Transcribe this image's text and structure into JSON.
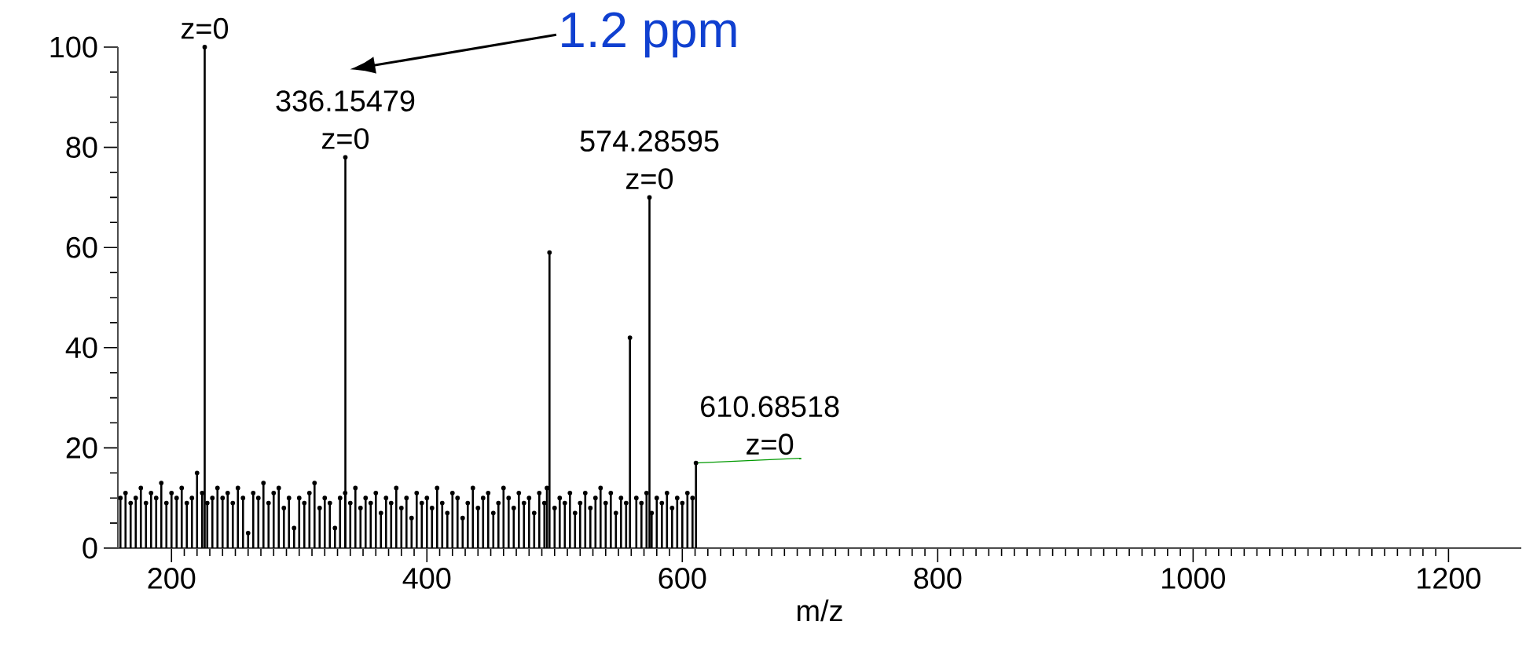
{
  "chart_data": {
    "type": "lollipop",
    "xlabel": "m/z",
    "color": "#000000",
    "x": [
      160,
      164,
      168,
      172,
      176,
      180,
      184,
      188,
      192,
      196,
      200,
      204,
      208,
      212,
      216,
      220,
      224,
      226,
      228,
      232,
      236,
      240,
      244,
      248,
      252,
      256,
      260,
      264,
      268,
      272,
      276,
      280,
      284,
      288,
      292,
      296,
      300,
      304,
      308,
      312,
      316,
      320,
      324,
      328,
      332,
      336,
      336.15479,
      340,
      344,
      348,
      352,
      356,
      360,
      364,
      368,
      372,
      376,
      380,
      384,
      388,
      392,
      396,
      400,
      404,
      408,
      412,
      416,
      420,
      424,
      428,
      432,
      436,
      440,
      444,
      448,
      452,
      456,
      460,
      464,
      468,
      472,
      476,
      480,
      484,
      488,
      492,
      494,
      496,
      500,
      504,
      508,
      512,
      516,
      520,
      524,
      528,
      532,
      536,
      540,
      544,
      548,
      552,
      556,
      559,
      564,
      568,
      572,
      574.28595,
      576,
      580,
      584,
      588,
      592,
      596,
      600,
      604,
      608,
      610.68518
    ],
    "values": [
      10,
      11,
      9,
      10,
      12,
      9,
      11,
      10,
      13,
      9,
      11,
      10,
      12,
      9,
      10,
      15,
      11,
      100,
      9,
      10,
      12,
      10,
      11,
      9,
      12,
      10,
      3,
      11,
      10,
      13,
      9,
      11,
      12,
      8,
      10,
      4,
      10,
      9,
      11,
      13,
      8,
      10,
      9,
      4,
      10,
      11,
      78,
      9,
      12,
      8,
      10,
      9,
      11,
      7,
      10,
      9,
      12,
      8,
      10,
      6,
      11,
      9,
      10,
      8,
      12,
      9,
      7,
      11,
      10,
      6,
      9,
      12,
      8,
      10,
      11,
      7,
      9,
      12,
      10,
      8,
      11,
      9,
      10,
      7,
      11,
      9,
      12,
      59,
      8,
      10,
      9,
      11,
      7,
      9,
      11,
      8,
      10,
      12,
      9,
      11,
      7,
      10,
      9,
      42,
      10,
      9,
      11,
      70,
      7,
      10,
      9,
      11,
      8,
      10,
      9,
      11,
      10,
      17
    ],
    "xlim": [
      158,
      1257
    ],
    "ylim": [
      0,
      100
    ],
    "xticks": [
      200,
      400,
      600,
      800,
      1000,
      1200
    ],
    "yticks": [
      0,
      20,
      40,
      60,
      80,
      100
    ],
    "annotations": [
      {
        "text": "z=0",
        "x": 226,
        "y": 100
      },
      "1.2 ppm",
      {
        "text": "336.15479",
        "x": 336.15479,
        "y": 78
      },
      {
        "text": "z=0",
        "x": 336.15479,
        "y": 78
      },
      {
        "text": "574.28595",
        "x": 574.28595,
        "y": 70
      },
      {
        "text": "z=0",
        "x": 574.28595,
        "y": 70
      },
      {
        "text": "610.68518",
        "x": 610.68518,
        "y": 17
      },
      {
        "text": "z=0",
        "x": 610.68518,
        "y": 17
      }
    ]
  }
}
